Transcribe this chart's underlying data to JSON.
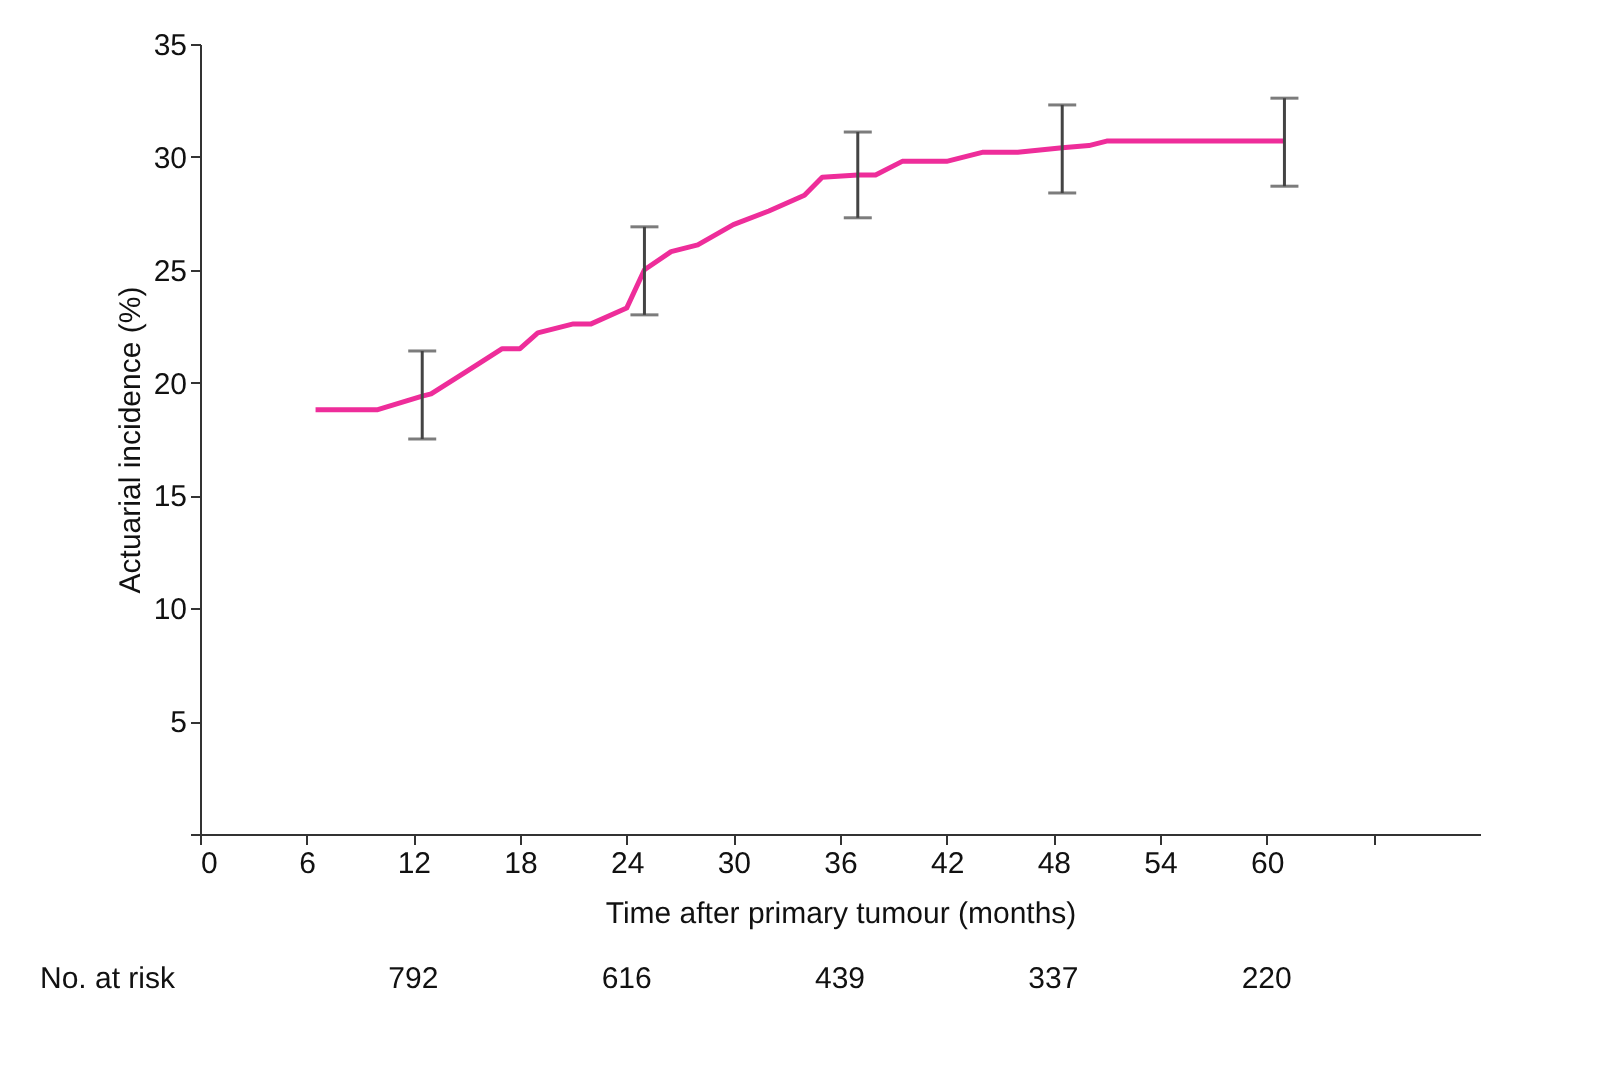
{
  "chart_data": {
    "type": "line",
    "xlabel": "Time after primary tumour (months)",
    "ylabel": "Actuarial incidence (%)",
    "xlim": [
      0,
      72
    ],
    "xticks": [
      0,
      6,
      12,
      18,
      24,
      30,
      36,
      42,
      48,
      54,
      60,
      {
        "value": 66,
        "label": null
      }
    ],
    "ylim": [
      0,
      35
    ],
    "yticks": [
      {
        "value": 0,
        "label": null
      },
      5,
      10,
      15,
      20,
      25,
      30,
      35
    ],
    "series": [
      {
        "color": "#ee2d9a",
        "x": [
          6.5,
          10,
          12.5,
          13,
          15,
          17,
          18,
          19,
          21,
          22,
          24,
          25,
          26.5,
          28,
          30,
          32,
          34,
          35,
          37,
          38,
          39.5,
          42,
          44,
          46,
          48.5,
          50,
          51,
          61
        ],
        "values": [
          18.8,
          18.8,
          19.4,
          19.5,
          20.5,
          21.5,
          21.5,
          22.2,
          22.6,
          22.6,
          23.3,
          25,
          25.8,
          26.1,
          27,
          27.6,
          28.3,
          29.1,
          29.2,
          29.2,
          29.8,
          29.8,
          30.2,
          30.2,
          30.4,
          30.5,
          30.7,
          30.7
        ],
        "errors": [
          null,
          null,
          [
            17.5,
            21.4
          ],
          null,
          null,
          null,
          null,
          null,
          null,
          null,
          null,
          [
            23,
            26.9
          ],
          null,
          null,
          null,
          null,
          null,
          null,
          [
            27.3,
            31.1
          ],
          null,
          null,
          null,
          null,
          null,
          [
            28.4,
            32.3
          ],
          null,
          null,
          [
            28.7,
            32.6
          ]
        ]
      }
    ],
    "annotations": [
      "No. at risk",
      "792",
      "616",
      "439",
      "337",
      "220"
    ],
    "marker": "none",
    "line_style": "solid",
    "grid": false
  }
}
